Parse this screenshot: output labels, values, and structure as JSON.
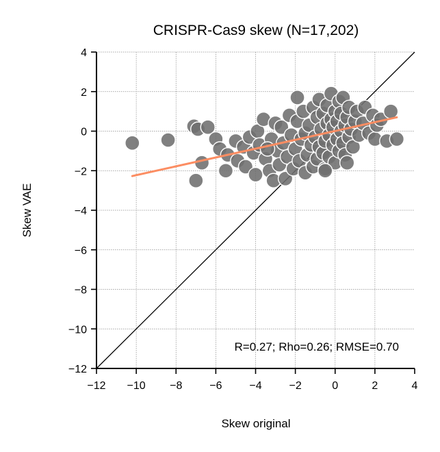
{
  "chart_data": {
    "type": "scatter",
    "title": "CRISPR-Cas9 skew (N=17,202)",
    "xlabel": "Skew original",
    "ylabel": "Skew VAE",
    "xlim": [
      -12,
      4
    ],
    "ylim": [
      -12,
      4
    ],
    "xticks": [
      -12,
      -10,
      -8,
      -6,
      -4,
      -2,
      0,
      2,
      4
    ],
    "yticks": [
      -12,
      -10,
      -8,
      -6,
      -4,
      -2,
      0,
      2,
      4
    ],
    "xtick_labels": [
      "−12",
      "−10",
      "−8",
      "−6",
      "−4",
      "−2",
      "0",
      "2",
      "4"
    ],
    "ytick_labels": [
      "−12",
      "−10",
      "−8",
      "−6",
      "−4",
      "−2",
      "0",
      "2",
      "4"
    ],
    "grid": true,
    "annotation": "R=0.27; Rho=0.26; RMSE=0.70",
    "identity_line": {
      "x": [
        -12,
        4
      ],
      "y": [
        -12,
        4
      ],
      "color": "#000000"
    },
    "regression_line": {
      "x": [
        -10.2,
        3.1
      ],
      "y": [
        -2.27,
        0.7
      ],
      "color": "#fc8d62"
    },
    "marker_color": "#6e6e6e",
    "marker_edge_color": "#ffffff",
    "points": [
      {
        "x": -10.2,
        "y": -0.6
      },
      {
        "x": -8.4,
        "y": -0.45
      },
      {
        "x": -7.1,
        "y": 0.25
      },
      {
        "x": -6.9,
        "y": 0.1
      },
      {
        "x": -6.4,
        "y": 0.2
      },
      {
        "x": -6.7,
        "y": -1.6
      },
      {
        "x": -7.0,
        "y": -2.5
      },
      {
        "x": -6.0,
        "y": -0.4
      },
      {
        "x": -5.8,
        "y": -0.9
      },
      {
        "x": -5.5,
        "y": -2.0
      },
      {
        "x": -5.4,
        "y": -1.2
      },
      {
        "x": -5.0,
        "y": -0.5
      },
      {
        "x": -4.9,
        "y": -1.5
      },
      {
        "x": -4.6,
        "y": -0.8
      },
      {
        "x": -4.5,
        "y": -1.8
      },
      {
        "x": -4.3,
        "y": -0.3
      },
      {
        "x": -4.1,
        "y": -1.1
      },
      {
        "x": -4.0,
        "y": -2.2
      },
      {
        "x": -3.9,
        "y": 0.0
      },
      {
        "x": -3.8,
        "y": -0.7
      },
      {
        "x": -3.6,
        "y": 0.6
      },
      {
        "x": -3.5,
        "y": -1.4
      },
      {
        "x": -3.3,
        "y": -2.0
      },
      {
        "x": -3.2,
        "y": -0.4
      },
      {
        "x": -3.1,
        "y": -2.5
      },
      {
        "x": -3.0,
        "y": 0.4
      },
      {
        "x": -2.9,
        "y": -1.0
      },
      {
        "x": -2.8,
        "y": -1.7
      },
      {
        "x": -2.7,
        "y": 0.2
      },
      {
        "x": -2.6,
        "y": -0.6
      },
      {
        "x": -2.5,
        "y": -2.4
      },
      {
        "x": -2.4,
        "y": -1.3
      },
      {
        "x": -2.3,
        "y": 0.8
      },
      {
        "x": -2.2,
        "y": -0.2
      },
      {
        "x": -2.1,
        "y": -1.9
      },
      {
        "x": -2.0,
        "y": -0.9
      },
      {
        "x": -1.9,
        "y": 0.5
      },
      {
        "x": -1.8,
        "y": -1.5
      },
      {
        "x": -1.7,
        "y": -0.4
      },
      {
        "x": -1.6,
        "y": 1.0
      },
      {
        "x": -1.5,
        "y": -2.1
      },
      {
        "x": -1.5,
        "y": -0.1
      },
      {
        "x": -1.4,
        "y": -1.2
      },
      {
        "x": -1.3,
        "y": 0.3
      },
      {
        "x": -1.2,
        "y": -0.7
      },
      {
        "x": -1.1,
        "y": 1.2
      },
      {
        "x": -1.1,
        "y": -1.8
      },
      {
        "x": -1.0,
        "y": -0.3
      },
      {
        "x": -0.9,
        "y": 0.7
      },
      {
        "x": -0.9,
        "y": -1.4
      },
      {
        "x": -0.8,
        "y": -0.8
      },
      {
        "x": -0.8,
        "y": 1.6
      },
      {
        "x": -0.7,
        "y": 0.1
      },
      {
        "x": -0.6,
        "y": -1.1
      },
      {
        "x": -0.6,
        "y": 0.9
      },
      {
        "x": -0.5,
        "y": -0.5
      },
      {
        "x": -0.5,
        "y": -1.9
      },
      {
        "x": -0.4,
        "y": 0.4
      },
      {
        "x": -0.4,
        "y": 1.3
      },
      {
        "x": -0.3,
        "y": -0.2
      },
      {
        "x": -0.3,
        "y": -1.3
      },
      {
        "x": -0.2,
        "y": 0.6
      },
      {
        "x": -0.2,
        "y": 1.9
      },
      {
        "x": -0.1,
        "y": -0.7
      },
      {
        "x": -0.1,
        "y": 0.2
      },
      {
        "x": 0.0,
        "y": -1.6
      },
      {
        "x": 0.0,
        "y": 1.0
      },
      {
        "x": 0.1,
        "y": -0.4
      },
      {
        "x": 0.1,
        "y": 0.5
      },
      {
        "x": 0.2,
        "y": 1.5
      },
      {
        "x": 0.2,
        "y": -1.0
      },
      {
        "x": 0.3,
        "y": 0.0
      },
      {
        "x": 0.3,
        "y": 0.9
      },
      {
        "x": 0.4,
        "y": -0.6
      },
      {
        "x": 0.4,
        "y": 1.7
      },
      {
        "x": 0.5,
        "y": 0.3
      },
      {
        "x": 0.5,
        "y": -1.2
      },
      {
        "x": 0.6,
        "y": 0.7
      },
      {
        "x": 0.7,
        "y": -0.3
      },
      {
        "x": 0.7,
        "y": 1.2
      },
      {
        "x": 0.8,
        "y": 0.1
      },
      {
        "x": 0.9,
        "y": -0.8
      },
      {
        "x": 1.0,
        "y": 0.5
      },
      {
        "x": 1.1,
        "y": 1.0
      },
      {
        "x": 1.2,
        "y": -0.2
      },
      {
        "x": 1.4,
        "y": 0.4
      },
      {
        "x": 1.5,
        "y": 1.2
      },
      {
        "x": 1.7,
        "y": -0.1
      },
      {
        "x": 1.9,
        "y": 0.8
      },
      {
        "x": 2.0,
        "y": -0.4
      },
      {
        "x": 2.1,
        "y": 0.3
      },
      {
        "x": 2.3,
        "y": 0.6
      },
      {
        "x": 2.6,
        "y": -0.5
      },
      {
        "x": 2.8,
        "y": 1.0
      },
      {
        "x": 3.1,
        "y": -0.4
      },
      {
        "x": -1.9,
        "y": 1.7
      },
      {
        "x": -0.5,
        "y": -2.0
      },
      {
        "x": 0.6,
        "y": -1.6
      },
      {
        "x": -3.4,
        "y": -0.9
      }
    ]
  }
}
